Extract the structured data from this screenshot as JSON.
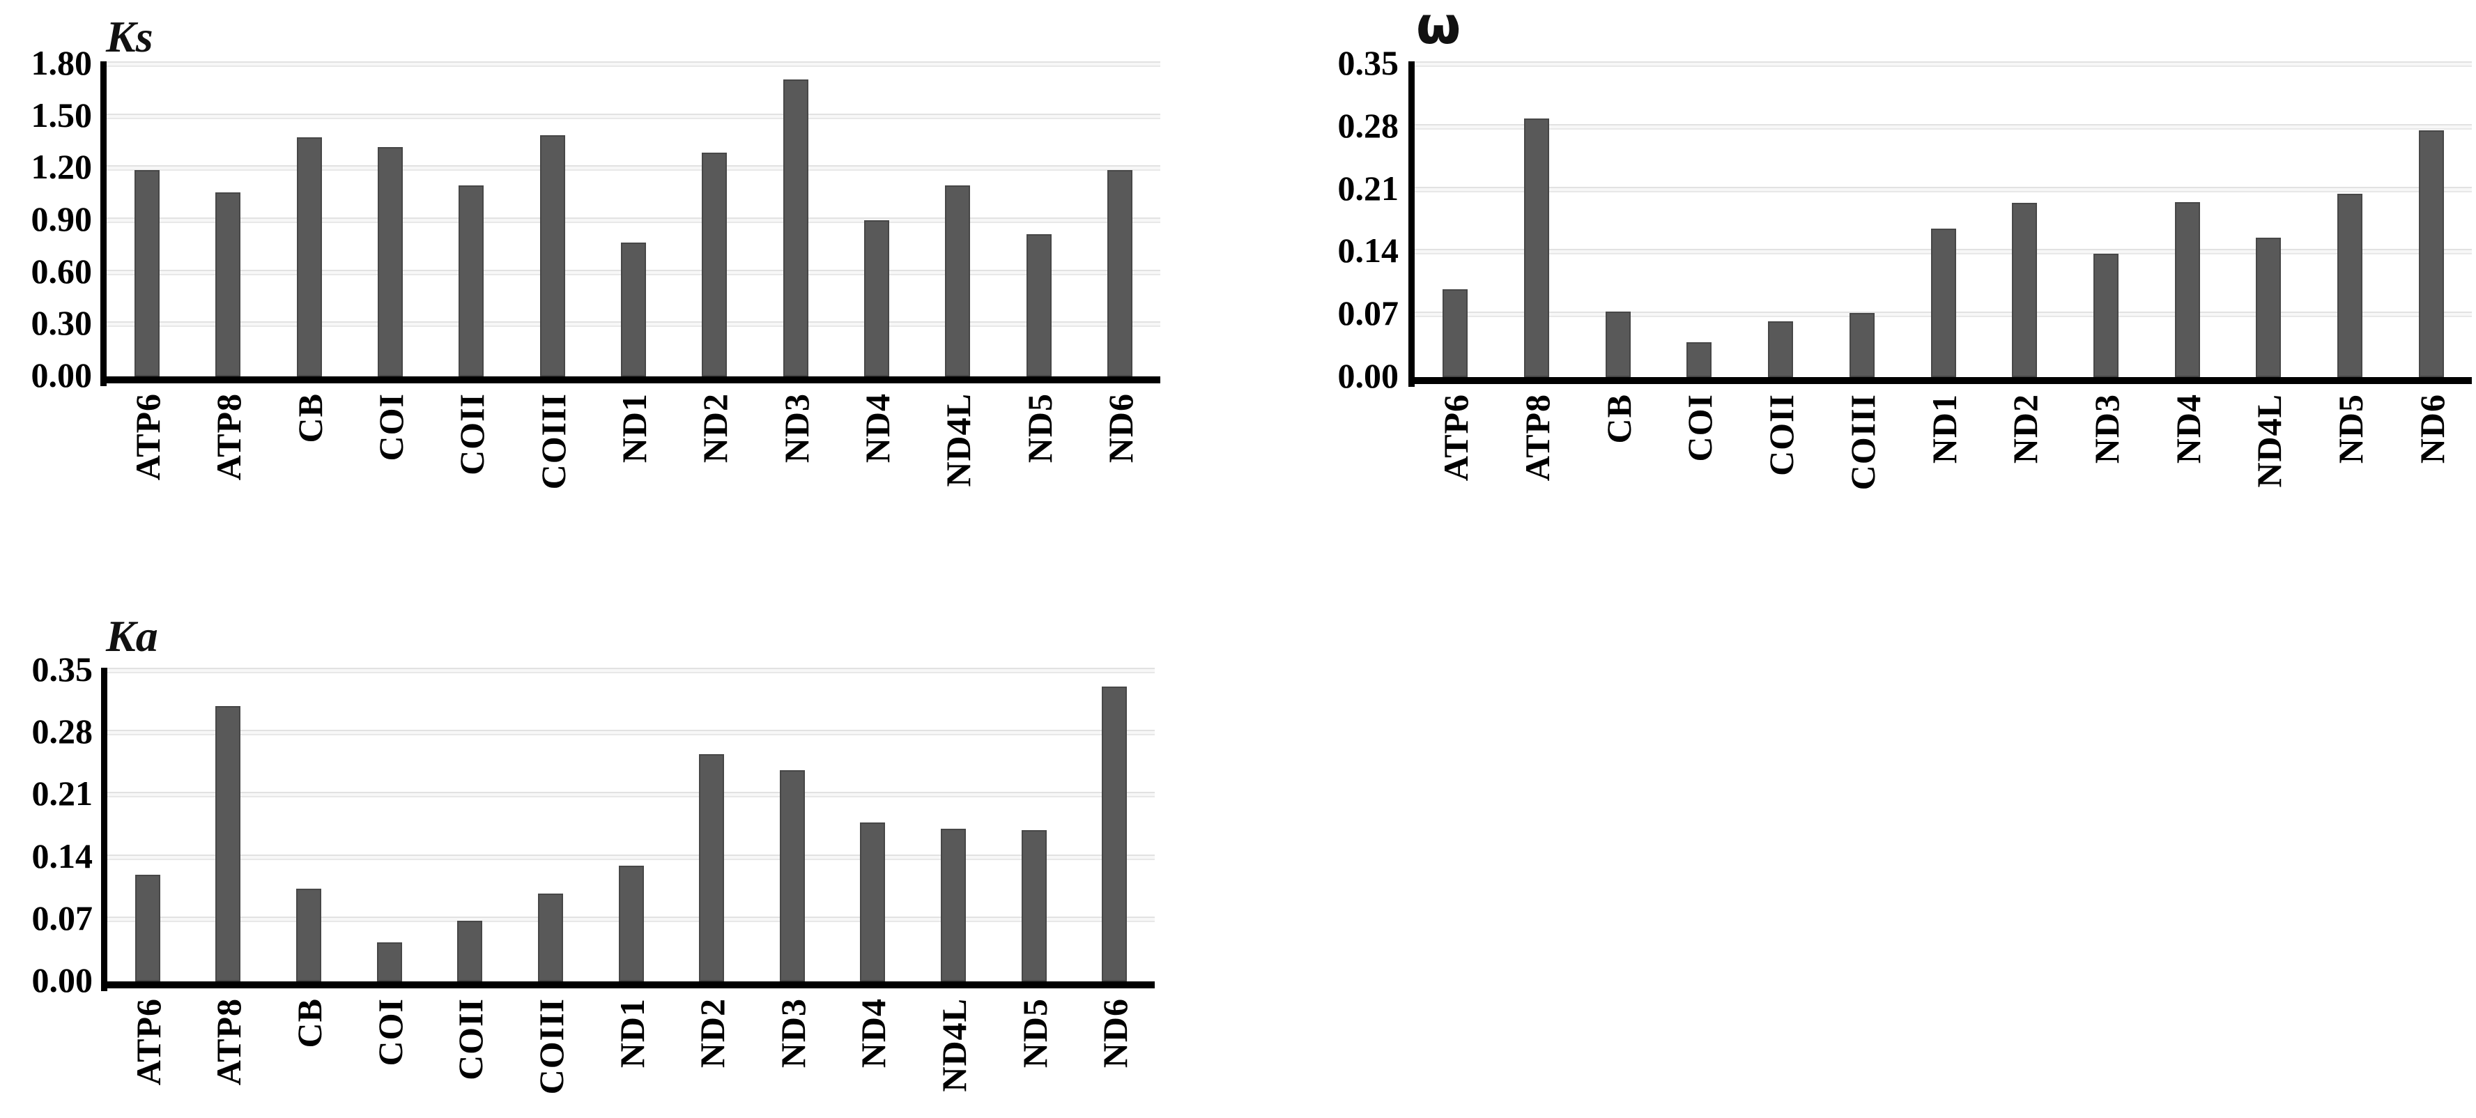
{
  "background_color": "#ffffff",
  "bar_color": "#595959",
  "chart_data": [
    {
      "type": "bar",
      "id": "ks",
      "title": "Ks",
      "xlabel": "",
      "ylabel": "",
      "categories": [
        "ATP6",
        "ATP8",
        "CB",
        "COI",
        "COII",
        "COIII",
        "ND1",
        "ND2",
        "ND3",
        "ND4",
        "ND4L",
        "ND5",
        "ND6"
      ],
      "values": [
        1.19,
        1.06,
        1.38,
        1.32,
        1.1,
        1.39,
        0.77,
        1.29,
        1.71,
        0.9,
        1.1,
        0.82,
        1.19
      ],
      "ylim": [
        0,
        1.8
      ],
      "ytick_step": 0.3,
      "grid": true,
      "legend": "none",
      "bar_color": "#595959",
      "y_ticks": [
        {
          "label": "1.80",
          "value": 1.8
        },
        {
          "label": "1.50",
          "value": 1.5
        },
        {
          "label": "1.20",
          "value": 1.2
        },
        {
          "label": "0.90",
          "value": 0.9
        },
        {
          "label": "0.60",
          "value": 0.6
        },
        {
          "label": "0.30",
          "value": 0.3
        },
        {
          "label": "0.00",
          "value": 0.0
        }
      ]
    },
    {
      "type": "bar",
      "id": "omega",
      "title": "ω",
      "xlabel": "",
      "ylabel": "",
      "categories": [
        "ATP6",
        "ATP8",
        "CB",
        "COI",
        "COII",
        "COIII",
        "ND1",
        "ND2",
        "ND3",
        "ND4",
        "ND4L",
        "ND5",
        "ND6"
      ],
      "values": [
        0.098,
        0.289,
        0.073,
        0.039,
        0.062,
        0.072,
        0.166,
        0.195,
        0.138,
        0.196,
        0.156,
        0.205,
        0.276
      ],
      "ylim": [
        0,
        0.35
      ],
      "ytick_step": 0.07,
      "grid": true,
      "legend": "none",
      "bar_color": "#595959",
      "y_ticks": [
        {
          "label": "0.35",
          "value": 0.35
        },
        {
          "label": "0.28",
          "value": 0.28
        },
        {
          "label": "0.21",
          "value": 0.21
        },
        {
          "label": "0.14",
          "value": 0.14
        },
        {
          "label": "0.07",
          "value": 0.07
        },
        {
          "label": "0.00",
          "value": 0.0
        }
      ]
    },
    {
      "type": "bar",
      "id": "ka",
      "title": "Ka",
      "xlabel": "",
      "ylabel": "",
      "categories": [
        "ATP6",
        "ATP8",
        "CB",
        "COI",
        "COII",
        "COIII",
        "ND1",
        "ND2",
        "ND3",
        "ND4",
        "ND4L",
        "ND5",
        "ND6"
      ],
      "values": [
        0.12,
        0.31,
        0.104,
        0.044,
        0.068,
        0.099,
        0.13,
        0.256,
        0.238,
        0.179,
        0.172,
        0.17,
        0.332
      ],
      "ylim": [
        0,
        0.35
      ],
      "ytick_step": 0.07,
      "grid": true,
      "legend": "none",
      "bar_color": "#595959",
      "y_ticks": [
        {
          "label": "0.35",
          "value": 0.35
        },
        {
          "label": "0.28",
          "value": 0.28
        },
        {
          "label": "0.21",
          "value": 0.21
        },
        {
          "label": "0.14",
          "value": 0.14
        },
        {
          "label": "0.07",
          "value": 0.07
        },
        {
          "label": "0.00",
          "value": 0.0
        }
      ]
    }
  ]
}
